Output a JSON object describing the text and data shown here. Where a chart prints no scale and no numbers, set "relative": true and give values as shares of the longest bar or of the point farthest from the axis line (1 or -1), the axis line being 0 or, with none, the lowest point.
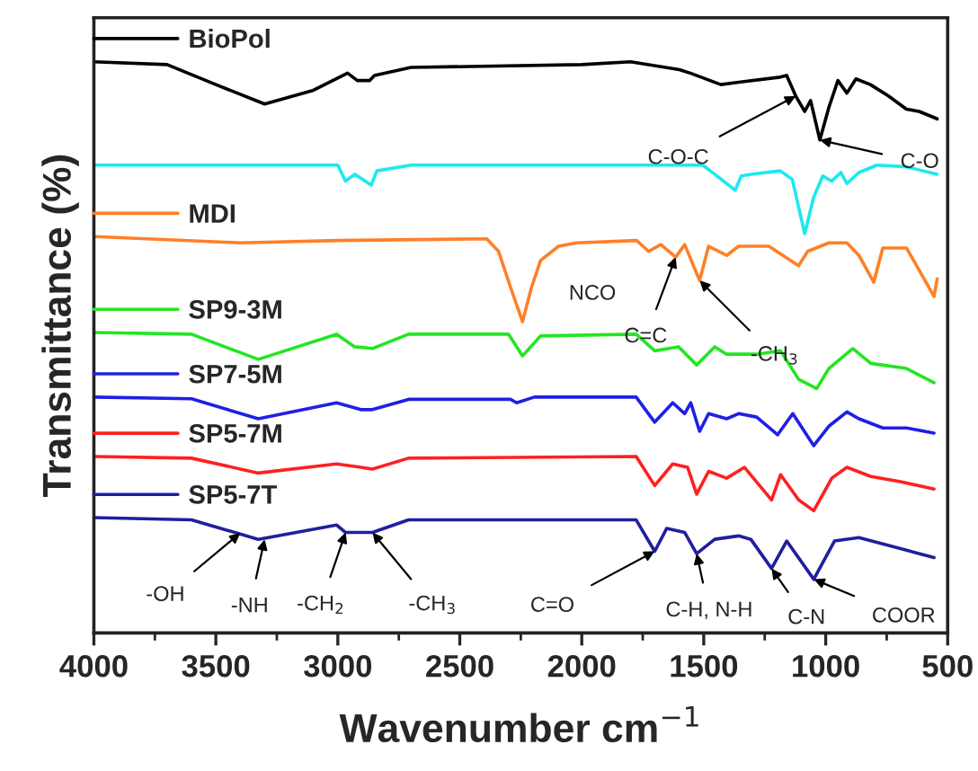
{
  "chart_data": {
    "type": "line",
    "relative": true,
    "xlabel": "Wavenumber cm$^{−1}$",
    "ylabel": "Transmittance (%)",
    "xlim": [
      4000,
      500
    ],
    "xticks": [
      4000,
      3500,
      3000,
      2500,
      2000,
      1500,
      1000,
      500
    ],
    "grid": false,
    "legend": "top left",
    "tick_labels": "x",
    "line_style": "solid",
    "marker": "none",
    "series": [
      {
        "name": "BioPol",
        "color": "#000000",
        "x": [
          4000,
          3700,
          3500,
          3300,
          3100,
          2960,
          2920,
          2870,
          2850,
          2700,
          2000,
          1800,
          1600,
          1555,
          1430,
          1357,
          1187,
          1160,
          1123,
          1086,
          1062,
          1024,
          987,
          950,
          913,
          876,
          817,
          743,
          669,
          617,
          543
        ],
        "values": [
          1.0,
          0.995,
          0.96,
          0.926,
          0.95,
          0.98,
          0.967,
          0.967,
          0.976,
          0.99,
          0.995,
          1.0,
          0.986,
          0.98,
          0.96,
          0.964,
          0.973,
          0.976,
          0.94,
          0.913,
          0.932,
          0.863,
          0.92,
          0.967,
          0.945,
          0.97,
          0.96,
          0.94,
          0.917,
          0.913,
          0.9
        ]
      },
      {
        "color": "#1de9ef",
        "x": [
          4000,
          3000,
          2969,
          2930,
          2863,
          2840,
          2700,
          1800,
          1504,
          1455,
          1371,
          1346,
          1307,
          1186,
          1137,
          1086,
          1050,
          1012,
          976,
          938,
          913,
          864,
          790,
          669,
          543
        ],
        "values": [
          0.819,
          0.819,
          0.791,
          0.803,
          0.784,
          0.809,
          0.819,
          0.819,
          0.819,
          0.803,
          0.775,
          0.8,
          0.803,
          0.809,
          0.794,
          0.699,
          0.762,
          0.8,
          0.791,
          0.806,
          0.787,
          0.806,
          0.819,
          0.816,
          0.803
        ]
      },
      {
        "name": "MDI",
        "color": "#ff7f27",
        "x": [
          4000,
          3400,
          3000,
          2390,
          2341,
          2292,
          2243,
          2206,
          2169,
          2095,
          2021,
          1775,
          1726,
          1676,
          1615,
          1578,
          1517,
          1480,
          1406,
          1357,
          1233,
          1111,
          1074,
          987,
          913,
          864,
          803,
          766,
          669,
          618,
          556,
          543
        ],
        "values": [
          0.694,
          0.683,
          0.687,
          0.69,
          0.668,
          0.605,
          0.545,
          0.605,
          0.652,
          0.677,
          0.683,
          0.687,
          0.668,
          0.68,
          0.658,
          0.68,
          0.617,
          0.677,
          0.661,
          0.677,
          0.677,
          0.643,
          0.668,
          0.683,
          0.683,
          0.661,
          0.614,
          0.674,
          0.674,
          0.636,
          0.589,
          0.62
        ]
      },
      {
        "name": "SP9-3M",
        "color": "#22e622",
        "x": [
          4000,
          3600,
          3326,
          3005,
          2931,
          2858,
          2710,
          2300,
          2243,
          2169,
          1777,
          1701,
          1603,
          1529,
          1455,
          1406,
          1283,
          1185,
          1111,
          1037,
          987,
          889,
          815,
          669,
          556
        ],
        "values": [
          0.526,
          0.523,
          0.479,
          0.523,
          0.501,
          0.498,
          0.523,
          0.523,
          0.485,
          0.52,
          0.523,
          0.494,
          0.501,
          0.469,
          0.501,
          0.488,
          0.488,
          0.494,
          0.444,
          0.428,
          0.463,
          0.498,
          0.472,
          0.463,
          0.438
        ]
      },
      {
        "name": "SP7-5M",
        "color": "#1f1fe6",
        "x": [
          4000,
          3600,
          3326,
          3005,
          2906,
          2858,
          2710,
          2292,
          2267,
          2194,
          1777,
          1701,
          1627,
          1578,
          1553,
          1517,
          1480,
          1406,
          1357,
          1283,
          1197,
          1135,
          1049,
          987,
          913,
          864,
          766,
          669,
          556
        ],
        "values": [
          0.413,
          0.41,
          0.375,
          0.403,
          0.391,
          0.391,
          0.409,
          0.409,
          0.403,
          0.413,
          0.413,
          0.369,
          0.403,
          0.384,
          0.403,
          0.353,
          0.384,
          0.375,
          0.384,
          0.378,
          0.347,
          0.384,
          0.328,
          0.362,
          0.387,
          0.375,
          0.359,
          0.359,
          0.35
        ]
      },
      {
        "name": "SP5-7M",
        "color": "#ff2020",
        "x": [
          4000,
          3600,
          3326,
          3005,
          2906,
          2858,
          2710,
          1777,
          1701,
          1627,
          1566,
          1529,
          1480,
          1406,
          1333,
          1222,
          1185,
          1111,
          1049,
          975,
          913,
          815,
          694,
          556
        ],
        "values": [
          0.309,
          0.306,
          0.28,
          0.296,
          0.29,
          0.287,
          0.306,
          0.309,
          0.258,
          0.296,
          0.29,
          0.243,
          0.283,
          0.271,
          0.29,
          0.233,
          0.277,
          0.233,
          0.214,
          0.271,
          0.29,
          0.274,
          0.265,
          0.252
        ]
      },
      {
        "name": "SP5-7T",
        "color": "#1f1f9f",
        "x": [
          4000,
          3600,
          3326,
          3005,
          2968,
          2858,
          2710,
          1777,
          1701,
          1652,
          1578,
          1529,
          1455,
          1357,
          1307,
          1222,
          1160,
          1049,
          964,
          864,
          669,
          556
        ],
        "values": [
          0.202,
          0.198,
          0.164,
          0.189,
          0.176,
          0.176,
          0.198,
          0.198,
          0.143,
          0.183,
          0.176,
          0.139,
          0.164,
          0.17,
          0.164,
          0.113,
          0.161,
          0.094,
          0.161,
          0.167,
          0.145,
          0.132
        ]
      }
    ],
    "annotations": [
      {
        "text": "C-O-C",
        "x": 1123,
        "y": 0.94
      },
      {
        "text": "C-O",
        "x": 1024,
        "y": 0.863
      },
      {
        "text": "NCO",
        "x": 2243,
        "y": 0.545
      },
      {
        "text": "C=C",
        "x": 1615,
        "y": 0.658
      },
      {
        "text": "-CH$_{3}$",
        "x": 1517,
        "y": 0.617
      },
      {
        "text": "-OH",
        "x": 3400,
        "y": 0.175
      },
      {
        "text": "-NH",
        "x": 3300,
        "y": 0.164
      },
      {
        "text": "-CH$_{2}$",
        "x": 2968,
        "y": 0.176
      },
      {
        "text": "-CH$_{3}$",
        "x": 2858,
        "y": 0.176
      },
      {
        "text": "C=O",
        "x": 1701,
        "y": 0.143
      },
      {
        "text": "C-H, N-H",
        "x": 1529,
        "y": 0.139
      },
      {
        "text": "C-N",
        "x": 1222,
        "y": 0.113
      },
      {
        "text": "COOR",
        "x": 1049,
        "y": 0.094
      }
    ]
  }
}
